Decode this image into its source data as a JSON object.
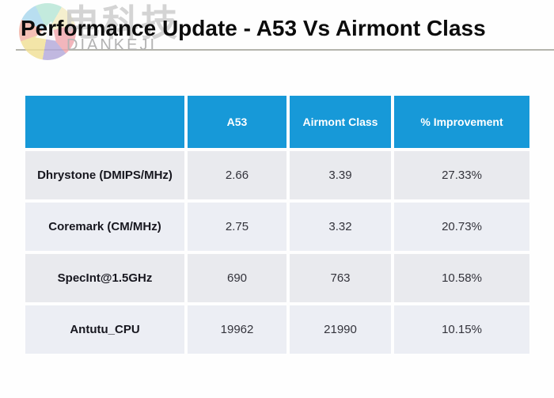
{
  "title": "Performance Update - A53 Vs Airmont Class",
  "watermark": {
    "cn_text": "电科技",
    "latin_text": "DIANKEJI",
    "petal_colors": [
      "#b7e6d6",
      "#f4ecc4",
      "#f0a7ae",
      "#b4a9da",
      "#f1e096",
      "#f2b2a4",
      "#a9d8ee"
    ]
  },
  "colors": {
    "header_bg": "#1799d8",
    "header_text": "#ffffff",
    "row_bg": "#e9eaee",
    "row_bg_alt": "#eceef4",
    "title_text": "#0c0c0c",
    "underline": "#b4b4ac"
  },
  "chart_data": {
    "type": "table",
    "title": "Performance Update - A53 Vs Airmont Class",
    "columns": [
      "",
      "A53",
      "Airmont Class",
      "% Improvement"
    ],
    "rows": [
      {
        "label": "Dhrystone (DMIPS/MHz)",
        "a53": "2.66",
        "airmont_class": "3.39",
        "improvement": "27.33%"
      },
      {
        "label": "Coremark (CM/MHz)",
        "a53": "2.75",
        "airmont_class": "3.32",
        "improvement": "20.73%"
      },
      {
        "label": "SpecInt@1.5GHz",
        "a53": "690",
        "airmont_class": "763",
        "improvement": "10.58%"
      },
      {
        "label": "Antutu_CPU",
        "a53": "19962",
        "airmont_class": "21990",
        "improvement": "10.15%"
      }
    ]
  }
}
